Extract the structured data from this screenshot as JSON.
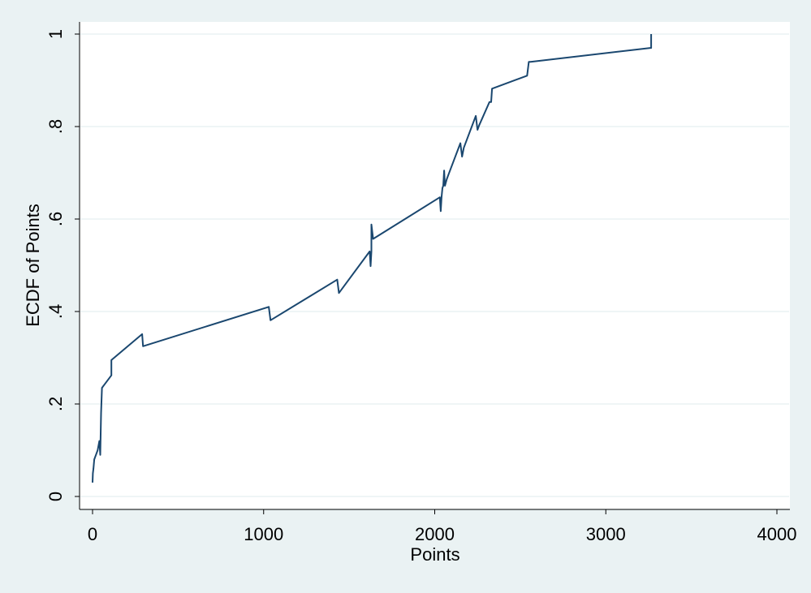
{
  "chart_data": {
    "type": "line",
    "title": "",
    "xlabel": "Points",
    "ylabel": "ECDF of Points",
    "xlim": [
      0,
      4000
    ],
    "ylim": [
      0,
      1
    ],
    "x_ticks": [
      0,
      1000,
      2000,
      3000,
      4000
    ],
    "x_tick_labels": [
      "0",
      "1000",
      "2000",
      "3000",
      "4000"
    ],
    "y_ticks": [
      0,
      0.2,
      0.4,
      0.6,
      0.8,
      1
    ],
    "y_tick_labels": [
      "0",
      ".2",
      ".4",
      ".6",
      ".8",
      "1"
    ],
    "grid": true,
    "legend": "none",
    "colors": {
      "background": "#eaf2f3",
      "plot_background": "#ffffff",
      "grid": "#eaf2f3",
      "line": "#1a476f"
    },
    "series": [
      {
        "x": [
          0,
          2,
          5,
          10,
          20,
          30,
          40,
          45,
          50,
          55,
          110,
          110,
          290,
          295,
          1030,
          1030,
          1040,
          1430,
          1440,
          1620,
          1625,
          1630,
          1630,
          1640,
          2030,
          2035,
          2040,
          2045,
          2050,
          2055,
          2060,
          2070,
          2080,
          2150,
          2160,
          2170,
          2240,
          2250,
          2260,
          2320,
          2330,
          2335,
          2540,
          2550,
          2560,
          3260,
          3265,
          3265
        ],
        "y": [
          0.03,
          0.05,
          0.06,
          0.08,
          0.09,
          0.1,
          0.12,
          0.09,
          0.18,
          0.235,
          0.262,
          0.295,
          0.351,
          0.325,
          0.41,
          0.41,
          0.381,
          0.469,
          0.44,
          0.53,
          0.498,
          0.53,
          0.588,
          0.557,
          0.647,
          0.617,
          0.647,
          0.667,
          0.672,
          0.705,
          0.672,
          0.686,
          0.696,
          0.764,
          0.735,
          0.754,
          0.823,
          0.793,
          0.803,
          0.853,
          0.853,
          0.882,
          0.91,
          0.94,
          0.94,
          0.97,
          0.97,
          1.0
        ]
      }
    ]
  }
}
